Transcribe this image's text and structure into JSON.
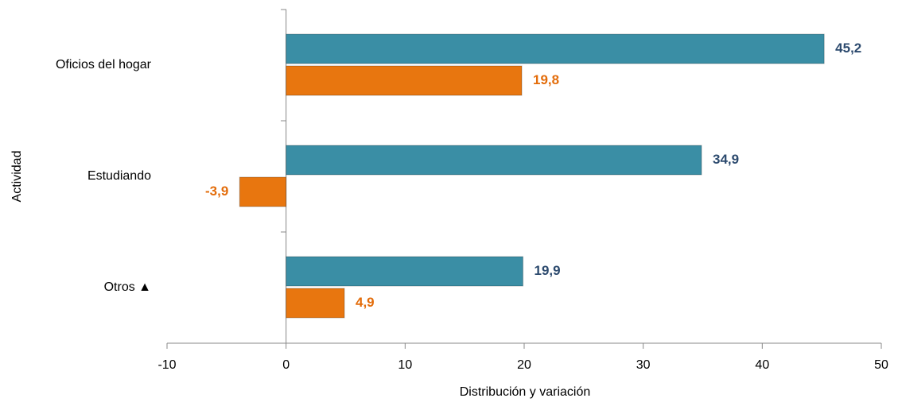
{
  "chart_data": {
    "type": "bar",
    "orientation": "horizontal",
    "categories": [
      "Oficios del hogar",
      "Estudiando",
      "Otros ▲"
    ],
    "series": [
      {
        "color": "#3a8ea5",
        "label_color": "#2c4a6e",
        "values": [
          45.2,
          34.9,
          19.9
        ],
        "value_labels": [
          "45,2",
          "34,9",
          "19,9"
        ]
      },
      {
        "color": "#e8760f",
        "label_color": "#e36c0a",
        "values": [
          19.8,
          -3.9,
          4.9
        ],
        "value_labels": [
          "19,8",
          "-3,9",
          "4,9"
        ]
      }
    ],
    "xlim": [
      -10,
      50
    ],
    "xticks": [
      -10,
      0,
      10,
      20,
      30,
      40,
      50
    ],
    "xlabel": "Distribución y variación",
    "ylabel": "Actividad"
  }
}
